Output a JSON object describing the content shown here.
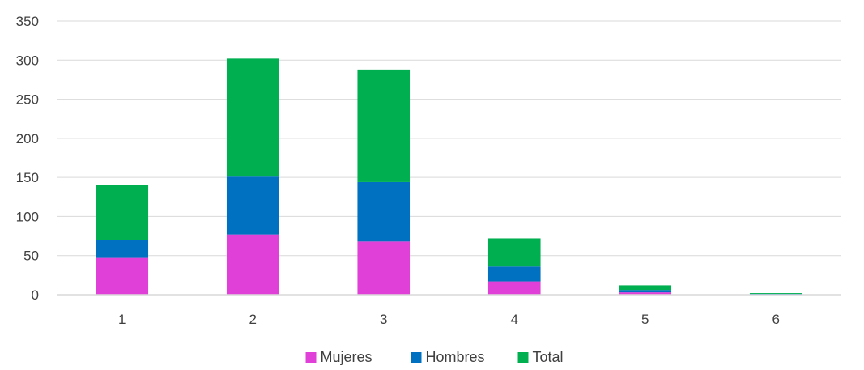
{
  "chart_data": {
    "type": "bar",
    "stacked": true,
    "categories": [
      "1",
      "2",
      "3",
      "4",
      "5",
      "6"
    ],
    "series": [
      {
        "name": "Mujeres",
        "color": "#e040d8",
        "values": [
          47,
          77,
          68,
          17,
          3,
          0.5
        ]
      },
      {
        "name": "Hombres",
        "color": "#0070c0",
        "values": [
          23,
          74,
          76,
          19,
          3,
          0.5
        ]
      },
      {
        "name": "Total",
        "color": "#00b050",
        "values": [
          70,
          151,
          144,
          36,
          6,
          1
        ]
      }
    ],
    "yticks": [
      "0",
      "50",
      "100",
      "150",
      "200",
      "250",
      "300",
      "350"
    ],
    "ylim": [
      0,
      350
    ],
    "grid": true,
    "legend_position": "bottom"
  }
}
